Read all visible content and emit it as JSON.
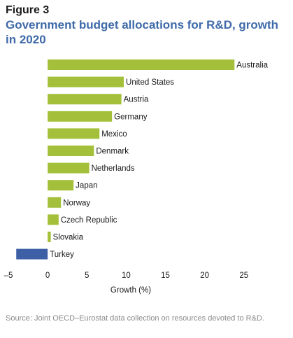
{
  "figure_label": "Figure 3",
  "title": "Government budget allocations for R&D, growth in 2020",
  "source": "Source: Joint OECD–Eurostat data collection on resources devoted to R&D.",
  "colors": {
    "positive": "#a4c03a",
    "negative": "#3c5fa6",
    "title": "#3f6aa8"
  },
  "chart_data": {
    "type": "bar",
    "orientation": "horizontal",
    "categories": [
      "Australia",
      "United States",
      "Austria",
      "Germany",
      "Mexico",
      "Denmark",
      "Netherlands",
      "Japan",
      "Norway",
      "Czech Republic",
      "Slovakia",
      "Turkey"
    ],
    "values": [
      23.8,
      9.7,
      9.4,
      8.2,
      6.6,
      5.9,
      5.3,
      3.3,
      1.7,
      1.4,
      0.4,
      -4.0
    ],
    "xlabel": "Growth (%)",
    "ylabel": "",
    "xlim": [
      -5,
      26
    ],
    "x_ticks": [
      "–5",
      "0",
      "5",
      "10",
      "15",
      "20",
      "25"
    ],
    "x_tick_values": [
      -5,
      0,
      5,
      10,
      15,
      20,
      25
    ],
    "grid": false,
    "legend": "none"
  }
}
